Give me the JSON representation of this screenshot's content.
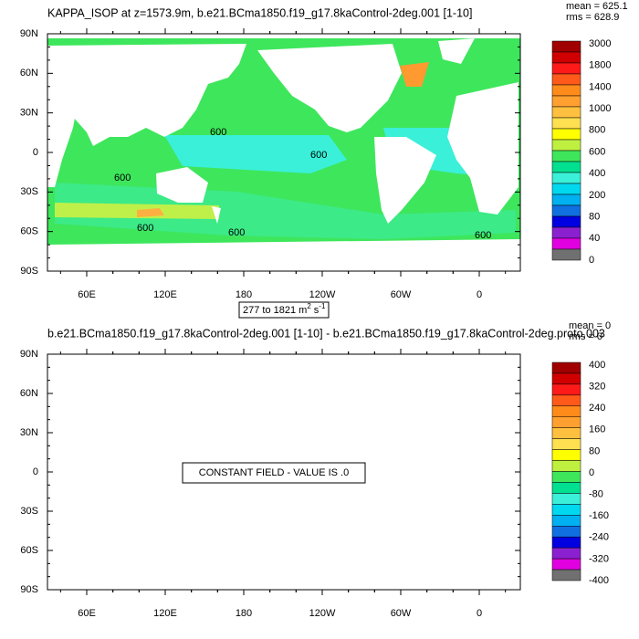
{
  "panels": [
    {
      "title": "KAPPA_ISOP at z=1573.9m, b.e21.BCma1850.f19_g17.8kaControl-2deg.001 [1-10]",
      "stats": [
        "mean = 625.1",
        "rms = 628.9"
      ],
      "y_labels": [
        "90N",
        "60N",
        "30N",
        "0",
        "30S",
        "60S",
        "90S"
      ],
      "x_labels": [
        "60E",
        "120E",
        "180",
        "120W",
        "60W",
        "0"
      ],
      "colorbar_labels": [
        3000,
        1800,
        1400,
        1000,
        800,
        600,
        400,
        200,
        80,
        40,
        0
      ],
      "contour_labels": [
        "600",
        "600",
        "600",
        "600",
        "600",
        "600"
      ],
      "range_label": {
        "text": "277 to 1821 m",
        "exp1": "2",
        "unit2": "s",
        "exp2": "-1"
      }
    },
    {
      "title": "b.e21.BCma1850.f19_g17.8kaControl-2deg.001 [1-10] - b.e21.BCma1850.f19_g17.8kaControl-2deg.proto.003",
      "stats": [
        "mean = 0",
        "rms = 0"
      ],
      "y_labels": [
        "90N",
        "60N",
        "30N",
        "0",
        "30S",
        "60S",
        "90S"
      ],
      "x_labels": [
        "60E",
        "120E",
        "180",
        "120W",
        "60W",
        "0"
      ],
      "colorbar_labels": [
        400,
        320,
        240,
        160,
        80,
        0,
        -80,
        -160,
        -240,
        -320,
        -400
      ],
      "message": "CONSTANT FIELD - VALUE IS .0"
    }
  ]
}
